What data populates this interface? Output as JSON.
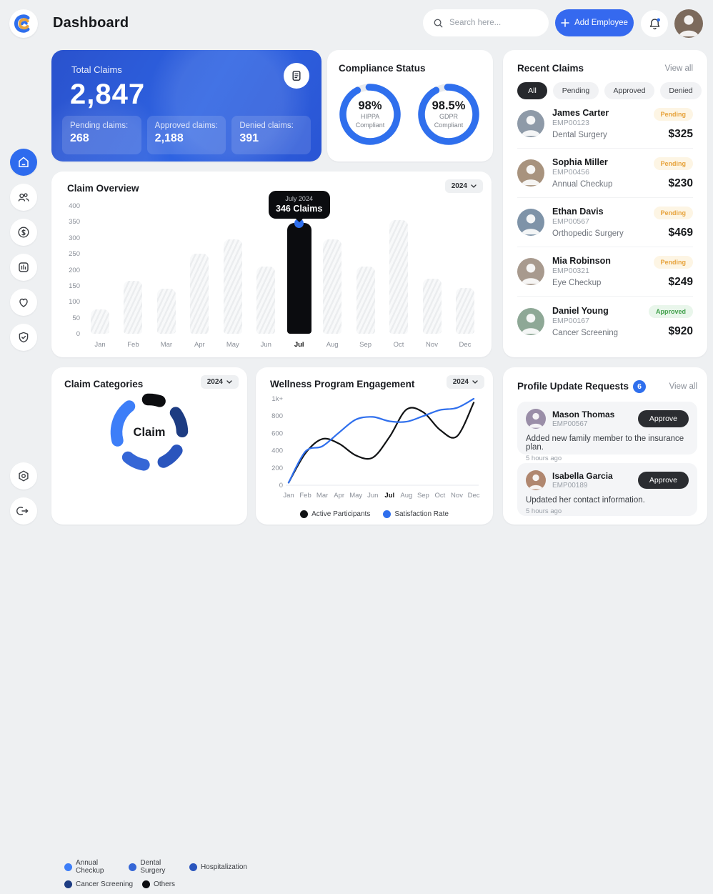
{
  "header": {
    "title": "Dashboard",
    "search_placeholder": "Search here...",
    "add_employee_label": "Add Employee"
  },
  "sidebar": {
    "items": [
      "home",
      "employees",
      "billing",
      "reports",
      "wellness",
      "compliance"
    ],
    "footer": [
      "settings",
      "logout"
    ]
  },
  "total_claims": {
    "title": "Total Claims",
    "value": "2,847",
    "stats": [
      {
        "label": "Pending claims:",
        "value": "268"
      },
      {
        "label": "Approved claims:",
        "value": "2,188"
      },
      {
        "label": "Denied claims:",
        "value": "391"
      }
    ]
  },
  "compliance": {
    "title": "Compliance Status"
  },
  "recent_claims": {
    "title": "Recent Claims",
    "view_all": "View all",
    "filters": [
      {
        "label": "All",
        "active": true
      },
      {
        "label": "Pending",
        "active": false
      },
      {
        "label": "Approved",
        "active": false
      },
      {
        "label": "Denied",
        "active": false
      }
    ],
    "items": [
      {
        "name": "James Carter",
        "id": "EMP00123",
        "treatment": "Dental Surgery",
        "status": "Pending",
        "amount": "$325"
      },
      {
        "name": "Sophia Miller",
        "id": "EMP00456",
        "treatment": "Annual Checkup",
        "status": "Pending",
        "amount": "$230"
      },
      {
        "name": "Ethan Davis",
        "id": "EMP00567",
        "treatment": "Orthopedic Surgery",
        "status": "Pending",
        "amount": "$469"
      },
      {
        "name": "Mia Robinson",
        "id": "EMP00321",
        "treatment": "Eye Checkup",
        "status": "Pending",
        "amount": "$249"
      },
      {
        "name": "Daniel Young",
        "id": "EMP00167",
        "treatment": "Cancer Screening",
        "status": "Approved",
        "amount": "$920"
      }
    ]
  },
  "claim_overview": {
    "title": "Claim Overview",
    "year": "2024",
    "tooltip": {
      "line1": "July 2024",
      "line2": "346 Claims"
    }
  },
  "claim_categories": {
    "title": "Claim Categories",
    "year": "2024",
    "center_label": "Claim"
  },
  "wellness": {
    "title": "Wellness Program Engagement",
    "year": "2024"
  },
  "profile_requests": {
    "title": "Profile Update Requests",
    "badge": "6",
    "view_all": "View all",
    "items": [
      {
        "name": "Mason Thomas",
        "id": "EMP00567",
        "action": "Approve",
        "desc": "Added new family member to the insurance plan.",
        "time": "5 hours ago"
      },
      {
        "name": "Isabella Garcia",
        "id": "EMP00189",
        "action": "Approve",
        "desc": "Updated her contact information.",
        "time": "5 hours ago"
      }
    ]
  },
  "chart_data": [
    {
      "id": "claims_by_month",
      "type": "bar",
      "title": "Claim Overview",
      "categories": [
        "Jan",
        "Feb",
        "Mar",
        "Apr",
        "May",
        "Jun",
        "Jul",
        "Aug",
        "Sep",
        "Oct",
        "Nov",
        "Dec"
      ],
      "values": [
        75,
        165,
        140,
        250,
        295,
        210,
        346,
        295,
        210,
        355,
        172,
        142
      ],
      "highlight_category": "Jul",
      "highlight_value": 346,
      "ylabel": "Claims",
      "ylim": [
        0,
        400
      ],
      "yticks": [
        0,
        50,
        100,
        150,
        200,
        250,
        300,
        350,
        400
      ],
      "grid": false
    },
    {
      "id": "compliance_gauges",
      "type": "donut",
      "items": [
        {
          "value": "98%",
          "label1": "HIPPA",
          "label2": "Compliant",
          "ring_fraction": 0.93
        },
        {
          "value": "98.5%",
          "label1": "GDPR",
          "label2": "Compliant",
          "ring_fraction": 0.93
        }
      ],
      "ring_color": "#2f6fed",
      "track_color": "#e8eaed"
    },
    {
      "id": "claim_categories",
      "type": "pie",
      "center_label": "Claim",
      "slices": [
        {
          "label": "Others",
          "color": "#0c0d10",
          "start_deg": -13,
          "end_deg": 29
        },
        {
          "label": "Cancer Screening",
          "color": "#1d3c82",
          "start_deg": 43,
          "end_deg": 99
        },
        {
          "label": "Hospitalization",
          "color": "#2a55bd",
          "start_deg": 113,
          "end_deg": 165
        },
        {
          "label": "Dental Surgery",
          "color": "#3566d6",
          "start_deg": 179,
          "end_deg": 231
        },
        {
          "label": "Annual Checkup",
          "color": "#3d7ef8",
          "start_deg": 245,
          "end_deg": 333
        }
      ],
      "legend_order": [
        "Annual Checkup",
        "Dental Surgery",
        "Hospitalization",
        "Cancer Screening",
        "Others"
      ]
    },
    {
      "id": "wellness_engagement",
      "type": "line",
      "title": "Wellness Program Engagement",
      "x": [
        "Jan",
        "Feb",
        "Mar",
        "Apr",
        "May",
        "Jun",
        "Jul",
        "Aug",
        "Sep",
        "Oct",
        "Nov",
        "Dec"
      ],
      "bold_x": "Jul",
      "yticks_labels": [
        "0",
        "200",
        "400",
        "600",
        "800",
        "1k+"
      ],
      "yticks_values": [
        0,
        200,
        400,
        600,
        800,
        1000
      ],
      "ylim": [
        0,
        1050
      ],
      "series": [
        {
          "name": "Active Participants",
          "color": "#111315",
          "values": [
            30,
            370,
            535,
            480,
            345,
            320,
            560,
            875,
            845,
            640,
            565,
            955
          ]
        },
        {
          "name": "Satisfaction Rate",
          "color": "#2f6fed",
          "values": [
            30,
            390,
            450,
            610,
            760,
            790,
            740,
            735,
            800,
            870,
            895,
            1000
          ]
        }
      ],
      "legend_position": "bottom"
    }
  ]
}
